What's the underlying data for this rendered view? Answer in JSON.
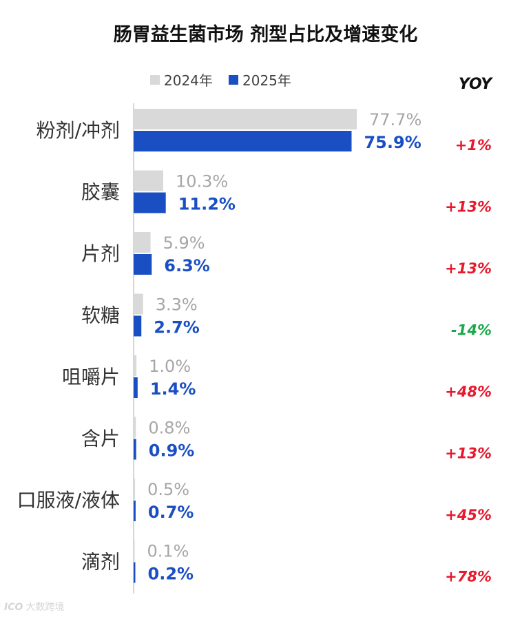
{
  "chart_data": {
    "type": "bar",
    "orientation": "horizontal",
    "title": "肠胃益生菌市场 剂型占比及增速变化",
    "categories": [
      "粉剂/冲剂",
      "胶囊",
      "片剂",
      "软糖",
      "咀嚼片",
      "含片",
      "口服液/液体",
      "滴剂"
    ],
    "series": [
      {
        "name": "2024年",
        "color": "#d9d9d9",
        "label_color": "#a6a6a6",
        "values": [
          77.7,
          10.3,
          5.9,
          3.3,
          1.0,
          0.8,
          0.5,
          0.1
        ],
        "labels": [
          "77.7%",
          "10.3%",
          "5.9%",
          "3.3%",
          "1.0%",
          "0.8%",
          "0.5%",
          "0.1%"
        ]
      },
      {
        "name": "2025年",
        "color": "#1a4fc4",
        "label_color": "#1a4fc4",
        "values": [
          75.9,
          11.2,
          6.3,
          2.7,
          1.4,
          0.9,
          0.7,
          0.2
        ],
        "labels": [
          "75.9%",
          "11.2%",
          "6.3%",
          "2.7%",
          "1.4%",
          "0.9%",
          "0.7%",
          "0.2%"
        ]
      }
    ],
    "yoy_header": "YOY",
    "yoy": [
      "+1%",
      "+13%",
      "+13%",
      "-14%",
      "+48%",
      "+13%",
      "+45%",
      "+78%"
    ],
    "yoy_colors": {
      "positive": "#e8192c",
      "negative": "#1aa84a"
    },
    "xlim": [
      0,
      100
    ],
    "legend": "top",
    "grid": false
  },
  "watermark": "大数跨境",
  "watermark_logo": "ICO"
}
